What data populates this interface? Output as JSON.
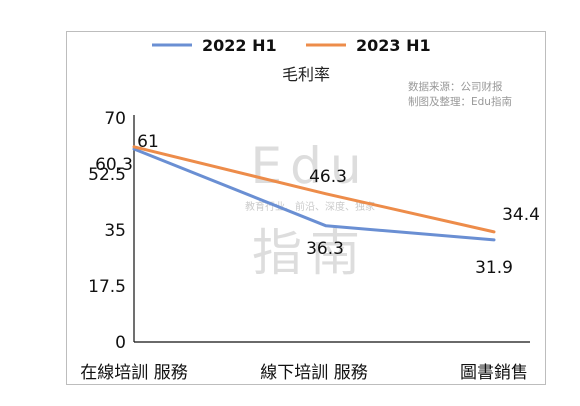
{
  "chart_data": {
    "type": "line",
    "title": "毛利率",
    "categories": [
      "在線培訓 服務",
      "線下培訓 服務",
      "圖書銷售"
    ],
    "series": [
      {
        "name": "2022 H1",
        "values": [
          60.3,
          36.3,
          31.9
        ],
        "color": "#6a8fd3"
      },
      {
        "name": "2023 H1",
        "values": [
          61,
          46.3,
          34.4
        ],
        "color": "#ed8c4a"
      }
    ],
    "y_ticks": [
      "0",
      "17.5",
      "35",
      "52.5",
      "70"
    ],
    "ylim": [
      0,
      70
    ],
    "grid": false,
    "legend_position": "top",
    "xlabel": "",
    "ylabel": ""
  },
  "source": {
    "line1": "数据来源：公司财报",
    "line2": "制图及整理：Edu指南"
  },
  "watermark": {
    "top": "Edu",
    "middle": "教育行业、前沿、深度、独家",
    "bottom": "指南"
  }
}
